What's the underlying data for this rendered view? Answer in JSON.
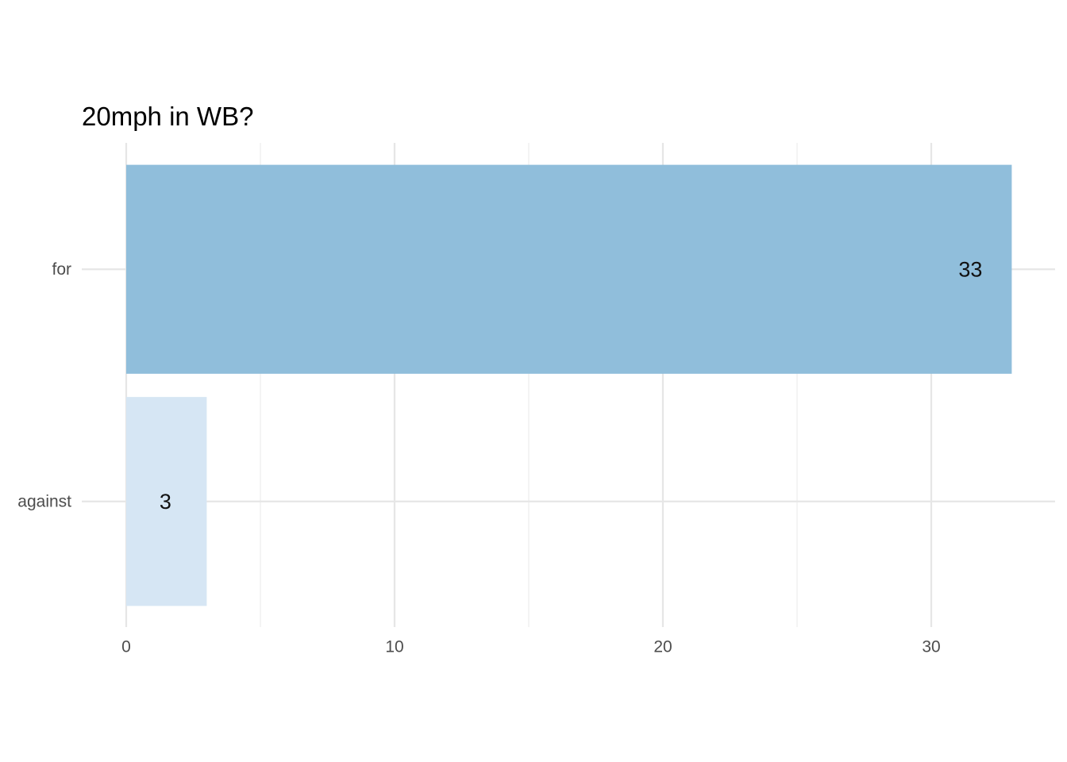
{
  "chart_data": {
    "type": "bar",
    "orientation": "horizontal",
    "title": "20mph in WB?",
    "xlabel": "",
    "ylabel": "",
    "categories": [
      "against",
      "for"
    ],
    "values": [
      3,
      33
    ],
    "value_labels": [
      "3",
      "33"
    ],
    "colors": [
      "#d6e6f4",
      "#90bedb"
    ],
    "xlim": [
      0,
      34.5
    ],
    "x_ticks": [
      0,
      10,
      20,
      30
    ],
    "x_tick_labels": [
      "0",
      "10",
      "20",
      "30"
    ],
    "x_minor_ticks": [
      5,
      15,
      25
    ],
    "grid": true,
    "legend": "none"
  }
}
